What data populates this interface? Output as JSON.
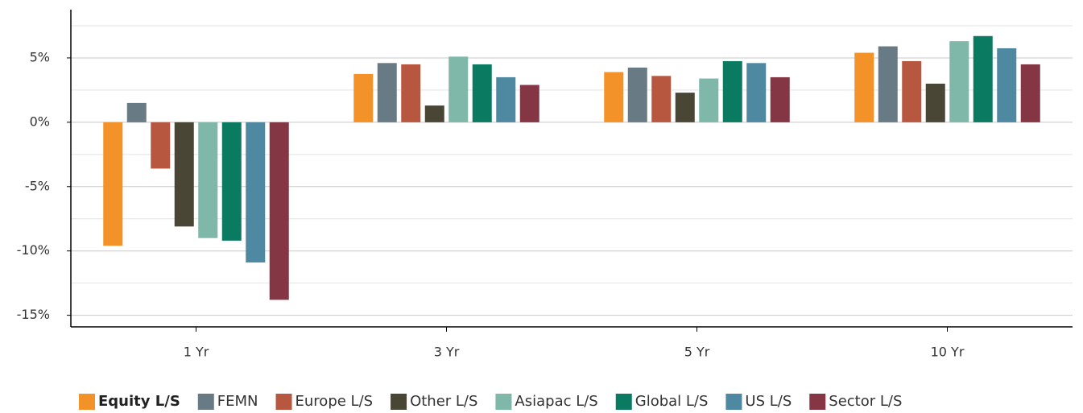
{
  "chart_data": {
    "type": "bar",
    "categories": [
      "1 Yr",
      "3 Yr",
      "5 Yr",
      "10 Yr"
    ],
    "series": [
      {
        "name": "Equity L/S",
        "color": "#f39229",
        "values": [
          -9.6,
          3.75,
          3.9,
          5.4
        ]
      },
      {
        "name": "FEMN",
        "color": "#687a84",
        "values": [
          1.5,
          4.6,
          4.25,
          5.9
        ]
      },
      {
        "name": "Europe L/S",
        "color": "#b85740",
        "values": [
          -3.6,
          4.5,
          3.6,
          4.75
        ]
      },
      {
        "name": "Other L/S",
        "color": "#4a4636",
        "values": [
          -8.1,
          1.3,
          2.3,
          3.0
        ]
      },
      {
        "name": "Asiapac L/S",
        "color": "#7fb7a8",
        "values": [
          -9.0,
          5.1,
          3.4,
          6.3
        ]
      },
      {
        "name": "Global L/S",
        "color": "#0a7a60",
        "values": [
          -9.2,
          4.5,
          4.75,
          6.7
        ]
      },
      {
        "name": "US L/S",
        "color": "#4e88a1",
        "values": [
          -10.9,
          3.5,
          4.6,
          5.75
        ]
      },
      {
        "name": "Sector L/S",
        "color": "#843645",
        "values": [
          -13.8,
          2.9,
          3.5,
          4.5
        ]
      }
    ],
    "ylim": [
      -15.9,
      8.75
    ],
    "yticks": [
      {
        "value": -15,
        "label": "-15%"
      },
      {
        "value": -10,
        "label": "-10%"
      },
      {
        "value": -5,
        "label": "-5%"
      },
      {
        "value": 0,
        "label": "0%"
      },
      {
        "value": 5,
        "label": "5%"
      }
    ],
    "minor_grid": [
      -12.5,
      -7.5,
      -2.5,
      2.5,
      7.5
    ],
    "grid": true,
    "legend_position": "bottom",
    "legend_bold_index": 0
  }
}
